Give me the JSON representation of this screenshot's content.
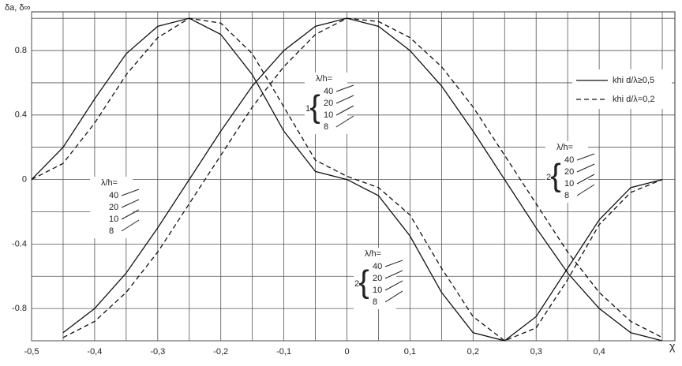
{
  "chart_data": {
    "type": "line",
    "y_label": "δa, δ∞",
    "x_label": "χ",
    "xlim": [
      -0.5,
      0.52
    ],
    "ylim": [
      -1.0,
      1.04
    ],
    "xticks": [
      {
        "value": -0.5,
        "label": "-0,5"
      },
      {
        "value": -0.4,
        "label": "-0,4"
      },
      {
        "value": -0.3,
        "label": "-0,3"
      },
      {
        "value": -0.2,
        "label": "-0,2"
      },
      {
        "value": -0.1,
        "label": "-0,1"
      },
      0,
      {
        "value": 0.1,
        "label": "0,1"
      },
      {
        "value": 0.2,
        "label": "0,2"
      },
      {
        "value": 0.3,
        "label": "0,3"
      },
      {
        "value": 0.4,
        "label": "0,4"
      }
    ],
    "yticks": [
      -0.8,
      -0.4,
      0,
      0.4,
      0.8
    ],
    "minor_xticks": [
      -0.45,
      -0.35,
      -0.25,
      -0.15,
      -0.05,
      0.05,
      0.15,
      0.25,
      0.35,
      0.45,
      0.5
    ],
    "minor_yticks": [
      -1.0,
      -0.6,
      -0.2,
      0.2,
      0.6,
      1.0
    ],
    "grid": true,
    "x": [
      -0.5,
      -0.45,
      -0.4,
      -0.35,
      -0.3,
      -0.25,
      -0.2,
      -0.15,
      -0.1,
      -0.05,
      0,
      0.05,
      0.1,
      0.15,
      0.2,
      0.25,
      0.3,
      0.35,
      0.4,
      0.45,
      0.5
    ],
    "series": [
      {
        "style": "solid",
        "color": "#111111",
        "values": [
          null,
          -0.95,
          -0.8,
          -0.58,
          -0.3,
          0,
          0.3,
          0.58,
          0.8,
          0.95,
          1.0,
          0.95,
          0.8,
          0.58,
          0.3,
          0,
          -0.3,
          -0.58,
          -0.8,
          -0.95,
          -1.0
        ]
      },
      {
        "style": "dashed",
        "color": "#111111",
        "values": [
          null,
          -0.98,
          -0.88,
          -0.7,
          -0.45,
          -0.15,
          0.15,
          0.45,
          0.7,
          0.9,
          1.0,
          0.98,
          0.88,
          0.7,
          0.45,
          0.15,
          -0.15,
          -0.45,
          -0.7,
          -0.88,
          -0.98
        ]
      },
      {
        "style": "solid",
        "color": "#111111",
        "values": [
          0,
          0.2,
          0.5,
          0.78,
          0.95,
          1.0,
          0.9,
          0.65,
          0.3,
          0.05,
          0,
          -0.1,
          -0.35,
          -0.7,
          -0.95,
          -1.0,
          -0.85,
          -0.55,
          -0.25,
          -0.05,
          0
        ]
      },
      {
        "style": "dashed",
        "color": "#111111",
        "values": [
          0,
          0.1,
          0.35,
          0.65,
          0.88,
          1.0,
          0.97,
          0.78,
          0.45,
          0.12,
          0.02,
          -0.05,
          -0.22,
          -0.55,
          -0.85,
          -1.0,
          -0.92,
          -0.62,
          -0.28,
          -0.08,
          0
        ]
      }
    ],
    "legend": [
      {
        "style": "solid",
        "label": "khi d/λ≥0,5"
      },
      {
        "style": "dashed",
        "label": "khi d/λ=0,2"
      }
    ],
    "annotation_groups": [
      {
        "title": "λ/h=",
        "values": [
          "40",
          "20",
          "10",
          "8"
        ]
      },
      {
        "index": "1",
        "title": "λ/h=",
        "values": [
          "40",
          "20",
          "10",
          "8"
        ]
      },
      {
        "index": "2",
        "title": "λ/h=",
        "values": [
          "40",
          "20",
          "10",
          "8"
        ]
      },
      {
        "index": "2",
        "title": "λ/h=",
        "values": [
          "40",
          "20",
          "10",
          "8"
        ]
      }
    ]
  }
}
